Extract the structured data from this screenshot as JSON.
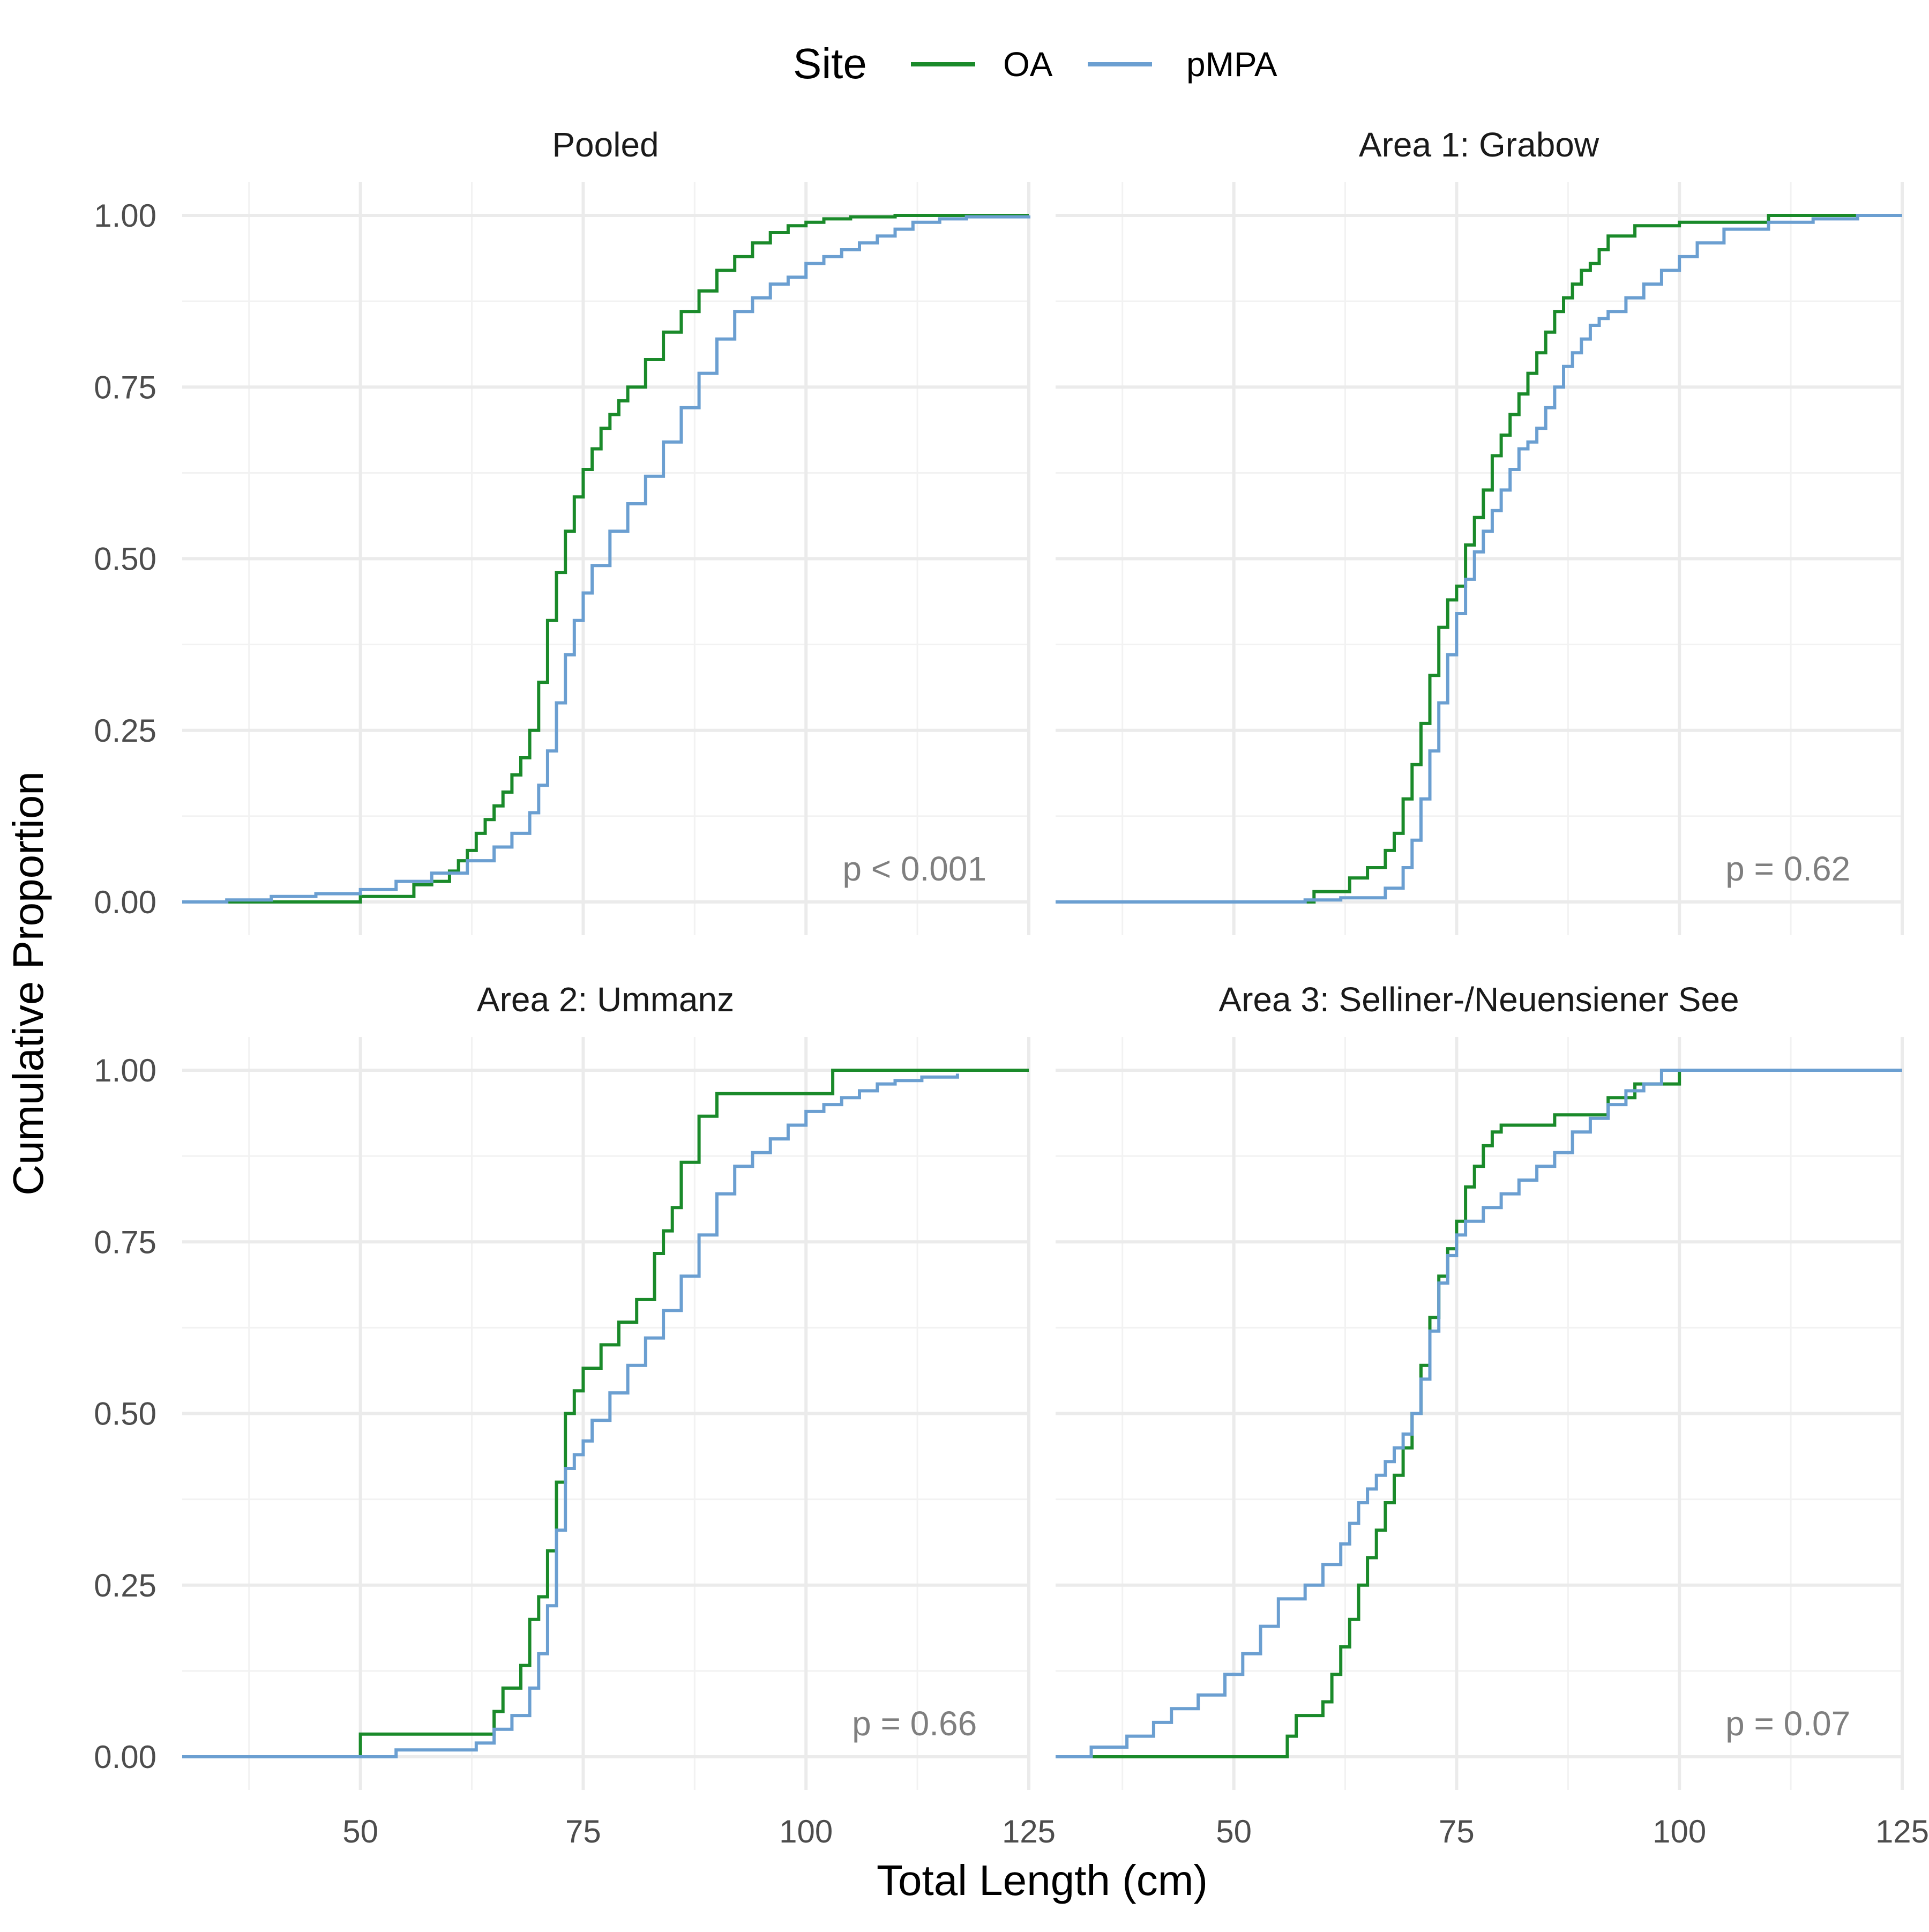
{
  "chart_data": {
    "type": "line",
    "xlabel": "Total Length (cm)",
    "ylabel": "Cumulative Proportion",
    "xlim": [
      30,
      125
    ],
    "ylim": [
      0,
      1
    ],
    "x_ticks": [
      50,
      75,
      100,
      125
    ],
    "y_ticks": [
      0,
      0.25,
      0.5,
      0.75,
      1
    ],
    "y_tick_labels": [
      "0.00",
      "0.25",
      "0.50",
      "0.75",
      "1.00"
    ],
    "grid": true,
    "legend": {
      "title": "Site",
      "position": "top",
      "entries": [
        {
          "label": "OA",
          "color": "#1a8a2a"
        },
        {
          "label": "pMPA",
          "color": "#6b9fd1"
        }
      ]
    },
    "panels": [
      {
        "title": "Pooled",
        "annotation": "p < 0.001",
        "series": [
          {
            "name": "OA",
            "color": "#1a8a2a",
            "x": [
              30,
              50,
              56,
              58,
              60,
              61,
              62,
              63,
              64,
              65,
              66,
              67,
              68,
              69,
              70,
              71,
              72,
              73,
              74,
              75,
              76,
              77,
              78,
              79,
              80,
              82,
              84,
              86,
              88,
              90,
              92,
              94,
              96,
              98,
              100,
              102,
              105,
              110,
              125
            ],
            "y": [
              0,
              0.008,
              0.025,
              0.03,
              0.045,
              0.06,
              0.075,
              0.1,
              0.12,
              0.14,
              0.16,
              0.185,
              0.21,
              0.25,
              0.32,
              0.41,
              0.48,
              0.54,
              0.59,
              0.63,
              0.66,
              0.69,
              0.71,
              0.73,
              0.75,
              0.79,
              0.83,
              0.86,
              0.89,
              0.92,
              0.94,
              0.96,
              0.975,
              0.985,
              0.99,
              0.995,
              0.998,
              1.0,
              1.0
            ]
          },
          {
            "name": "pMPA",
            "color": "#6b9fd1",
            "x": [
              30,
              35,
              40,
              45,
              50,
              54,
              58,
              62,
              65,
              67,
              69,
              70,
              71,
              72,
              73,
              74,
              75,
              76,
              78,
              80,
              82,
              84,
              86,
              88,
              90,
              92,
              94,
              96,
              98,
              100,
              102,
              104,
              106,
              108,
              110,
              112,
              115,
              118,
              125
            ],
            "y": [
              0,
              0.003,
              0.008,
              0.012,
              0.018,
              0.03,
              0.042,
              0.06,
              0.08,
              0.1,
              0.13,
              0.17,
              0.22,
              0.29,
              0.36,
              0.41,
              0.45,
              0.49,
              0.54,
              0.58,
              0.62,
              0.67,
              0.72,
              0.77,
              0.82,
              0.86,
              0.88,
              0.9,
              0.91,
              0.93,
              0.94,
              0.95,
              0.96,
              0.97,
              0.98,
              0.99,
              0.995,
              0.998,
              1.0
            ]
          }
        ]
      },
      {
        "title": "Area 1: Grabow",
        "annotation": "p = 0.62",
        "series": [
          {
            "name": "OA",
            "color": "#1a8a2a",
            "x": [
              30,
              59,
              63,
              65,
              67,
              68,
              69,
              70,
              71,
              72,
              73,
              74,
              75,
              76,
              77,
              78,
              79,
              80,
              81,
              82,
              83,
              84,
              85,
              86,
              87,
              88,
              89,
              90,
              91,
              92,
              95,
              100,
              110,
              125
            ],
            "y": [
              0,
              0.015,
              0.035,
              0.05,
              0.075,
              0.1,
              0.15,
              0.2,
              0.26,
              0.33,
              0.4,
              0.44,
              0.46,
              0.52,
              0.56,
              0.6,
              0.65,
              0.68,
              0.71,
              0.74,
              0.77,
              0.8,
              0.83,
              0.86,
              0.88,
              0.9,
              0.92,
              0.93,
              0.95,
              0.97,
              0.985,
              0.99,
              1.0,
              1.0
            ]
          },
          {
            "name": "pMPA",
            "color": "#6b9fd1",
            "x": [
              30,
              58,
              62,
              67,
              69,
              70,
              71,
              72,
              73,
              74,
              75,
              76,
              77,
              78,
              79,
              80,
              81,
              82,
              83,
              84,
              85,
              86,
              87,
              88,
              89,
              90,
              91,
              92,
              94,
              96,
              98,
              100,
              102,
              105,
              110,
              115,
              120,
              125
            ],
            "y": [
              0,
              0.003,
              0.006,
              0.02,
              0.05,
              0.09,
              0.15,
              0.22,
              0.29,
              0.36,
              0.42,
              0.47,
              0.51,
              0.54,
              0.57,
              0.6,
              0.63,
              0.66,
              0.67,
              0.69,
              0.72,
              0.75,
              0.78,
              0.8,
              0.82,
              0.84,
              0.85,
              0.86,
              0.88,
              0.9,
              0.92,
              0.94,
              0.96,
              0.98,
              0.99,
              0.995,
              1.0,
              1.0
            ]
          }
        ]
      },
      {
        "title": "Area 2: Ummanz",
        "annotation": "p = 0.66",
        "series": [
          {
            "name": "OA",
            "color": "#1a8a2a",
            "x": [
              30,
              50,
              65,
              66,
              68,
              69,
              70,
              71,
              72,
              73,
              74,
              75,
              77,
              79,
              81,
              83,
              84,
              85,
              86,
              88,
              90,
              100,
              103,
              125
            ],
            "y": [
              0,
              0.033,
              0.066,
              0.1,
              0.133,
              0.2,
              0.233,
              0.3,
              0.4,
              0.5,
              0.533,
              0.566,
              0.6,
              0.633,
              0.666,
              0.733,
              0.766,
              0.8,
              0.866,
              0.933,
              0.966,
              0.966,
              1.0,
              1.0
            ]
          },
          {
            "name": "pMPA",
            "color": "#6b9fd1",
            "x": [
              30,
              54,
              63,
              65,
              67,
              69,
              70,
              71,
              72,
              73,
              74,
              75,
              76,
              78,
              80,
              82,
              84,
              86,
              88,
              90,
              92,
              94,
              96,
              98,
              100,
              102,
              104,
              106,
              108,
              110,
              113,
              117
            ],
            "y": [
              0,
              0.01,
              0.02,
              0.04,
              0.06,
              0.1,
              0.15,
              0.22,
              0.33,
              0.42,
              0.44,
              0.46,
              0.49,
              0.53,
              0.57,
              0.61,
              0.65,
              0.7,
              0.76,
              0.82,
              0.86,
              0.88,
              0.9,
              0.92,
              0.94,
              0.95,
              0.96,
              0.97,
              0.98,
              0.985,
              0.99,
              0.995
            ]
          }
        ]
      },
      {
        "title": "Area 3: Selliner-/Neuensiener See",
        "annotation": "p = 0.07",
        "series": [
          {
            "name": "OA",
            "color": "#1a8a2a",
            "x": [
              30,
              56,
              57,
              60,
              61,
              62,
              63,
              64,
              65,
              66,
              67,
              68,
              69,
              70,
              71,
              72,
              73,
              74,
              75,
              76,
              77,
              78,
              79,
              80,
              86,
              92,
              95,
              100,
              125
            ],
            "y": [
              0,
              0.03,
              0.06,
              0.08,
              0.12,
              0.16,
              0.2,
              0.25,
              0.29,
              0.33,
              0.37,
              0.41,
              0.45,
              0.5,
              0.57,
              0.64,
              0.7,
              0.74,
              0.78,
              0.83,
              0.86,
              0.89,
              0.91,
              0.92,
              0.935,
              0.96,
              0.98,
              1.0,
              1.0
            ]
          },
          {
            "name": "pMPA",
            "color": "#6b9fd1",
            "x": [
              30,
              34,
              38,
              41,
              43,
              46,
              49,
              51,
              53,
              55,
              58,
              60,
              62,
              63,
              64,
              65,
              66,
              67,
              68,
              69,
              70,
              71,
              72,
              73,
              74,
              75,
              76,
              78,
              80,
              82,
              84,
              86,
              88,
              90,
              92,
              94,
              96,
              98,
              125
            ],
            "y": [
              0,
              0.014,
              0.03,
              0.05,
              0.07,
              0.09,
              0.12,
              0.15,
              0.19,
              0.23,
              0.25,
              0.28,
              0.31,
              0.34,
              0.37,
              0.39,
              0.41,
              0.43,
              0.45,
              0.47,
              0.5,
              0.55,
              0.62,
              0.69,
              0.73,
              0.76,
              0.78,
              0.8,
              0.82,
              0.84,
              0.86,
              0.88,
              0.91,
              0.93,
              0.95,
              0.97,
              0.98,
              1.0,
              1.0
            ]
          }
        ]
      }
    ]
  }
}
